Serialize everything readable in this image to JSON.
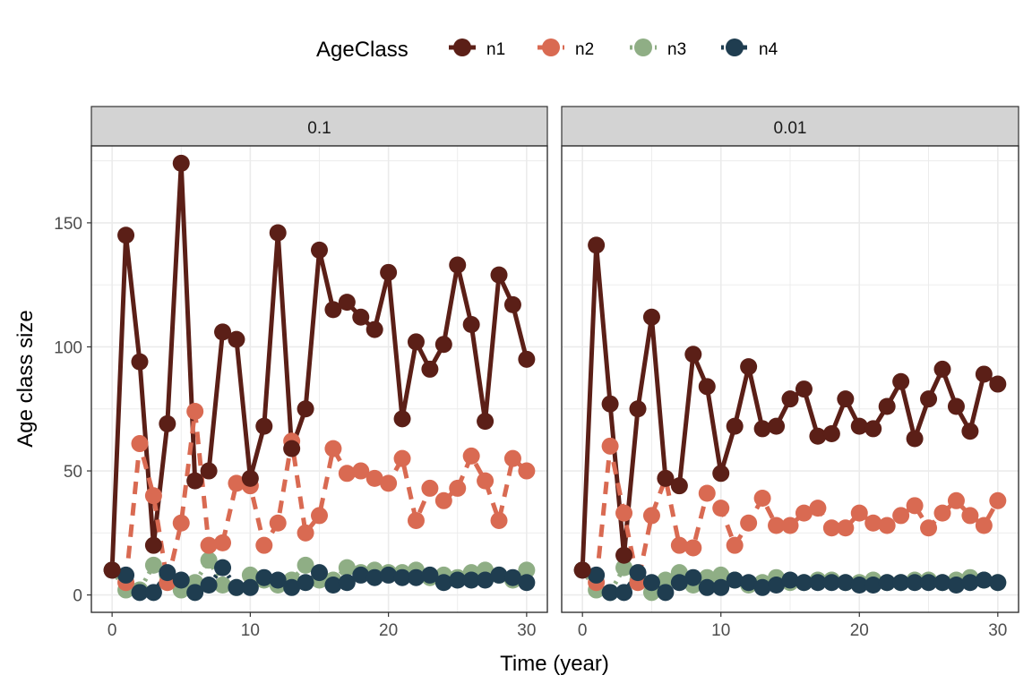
{
  "legend": {
    "title": "AgeClass",
    "items": [
      "n1",
      "n2",
      "n3",
      "n4"
    ]
  },
  "colors": {
    "n1": "#5b1f17",
    "n2": "#d96a52",
    "n3": "#8fae85",
    "n4": "#1f3d50",
    "panel_strip": "#d3d3d3",
    "grid": "#ebebeb",
    "axis_text": "#4d4d4d"
  },
  "axes": {
    "xlabel": "Time (year)",
    "ylabel": "Age class size"
  },
  "chart_data": [
    {
      "type": "line",
      "panel": "0.1",
      "x": [
        0,
        1,
        2,
        3,
        4,
        5,
        6,
        7,
        8,
        9,
        10,
        11,
        12,
        13,
        14,
        15,
        16,
        17,
        18,
        19,
        20,
        21,
        22,
        23,
        24,
        25,
        26,
        27,
        28,
        29,
        30
      ],
      "xlim": [
        -1.5,
        31.5
      ],
      "ylim": [
        -7,
        181
      ],
      "xticks": [
        0,
        10,
        20,
        30
      ],
      "yticks": [
        0,
        50,
        100,
        150
      ],
      "legend": "top",
      "grid": true,
      "series": [
        {
          "name": "n1",
          "line": "solid",
          "values": [
            10,
            145,
            94,
            20,
            69,
            174,
            46,
            50,
            106,
            103,
            47,
            68,
            146,
            59,
            75,
            139,
            115,
            118,
            112,
            107,
            130,
            71,
            102,
            91,
            101,
            133,
            109,
            70,
            129,
            117,
            95
          ]
        },
        {
          "name": "n2",
          "line": "dashed",
          "values": [
            10,
            5,
            61,
            40,
            5,
            29,
            74,
            20,
            21,
            45,
            44,
            20,
            29,
            62,
            25,
            32,
            59,
            49,
            50,
            47,
            45,
            55,
            30,
            43,
            38,
            43,
            56,
            46,
            30,
            55,
            50
          ]
        },
        {
          "name": "n3",
          "line": "dotted",
          "values": [
            10,
            2,
            2,
            12,
            8,
            2,
            5,
            14,
            4,
            3,
            8,
            6,
            4,
            6,
            12,
            6,
            6,
            11,
            9,
            10,
            9,
            9,
            10,
            7,
            8,
            7,
            9,
            10,
            8,
            6,
            10
          ]
        },
        {
          "name": "n4",
          "line": "dotdash",
          "values": [
            10,
            8,
            1,
            1,
            9,
            6,
            1,
            4,
            11,
            3,
            3,
            7,
            6,
            3,
            5,
            9,
            4,
            5,
            8,
            7,
            8,
            7,
            7,
            8,
            5,
            6,
            6,
            6,
            8,
            7,
            5
          ]
        }
      ]
    },
    {
      "type": "line",
      "panel": "0.01",
      "x": [
        0,
        1,
        2,
        3,
        4,
        5,
        6,
        7,
        8,
        9,
        10,
        11,
        12,
        13,
        14,
        15,
        16,
        17,
        18,
        19,
        20,
        21,
        22,
        23,
        24,
        25,
        26,
        27,
        28,
        29,
        30
      ],
      "xlim": [
        -1.5,
        31.5
      ],
      "ylim": [
        -7,
        181
      ],
      "xticks": [
        0,
        10,
        20,
        30
      ],
      "yticks": [
        0,
        50,
        100,
        150
      ],
      "legend": "top",
      "grid": true,
      "series": [
        {
          "name": "n1",
          "line": "solid",
          "values": [
            10,
            141,
            77,
            16,
            75,
            112,
            47,
            44,
            97,
            84,
            49,
            68,
            92,
            67,
            68,
            79,
            83,
            64,
            65,
            79,
            68,
            67,
            76,
            86,
            63,
            79,
            91,
            76,
            66,
            89,
            85
          ]
        },
        {
          "name": "n2",
          "line": "dashed",
          "values": [
            10,
            5,
            60,
            33,
            5,
            32,
            47,
            20,
            19,
            41,
            35,
            20,
            29,
            39,
            28,
            28,
            33,
            35,
            27,
            27,
            33,
            29,
            28,
            32,
            36,
            27,
            33,
            38,
            32,
            28,
            38
          ]
        },
        {
          "name": "n3",
          "line": "dotted",
          "values": [
            10,
            2,
            1,
            11,
            6,
            1,
            6,
            9,
            4,
            7,
            8,
            6,
            4,
            5,
            7,
            5,
            5,
            6,
            6,
            5,
            5,
            6,
            5,
            5,
            6,
            6,
            5,
            6,
            7,
            6,
            5
          ]
        },
        {
          "name": "n4",
          "line": "dotdash",
          "values": [
            10,
            8,
            1,
            1,
            9,
            5,
            1,
            5,
            7,
            3,
            3,
            6,
            5,
            3,
            4,
            6,
            5,
            5,
            5,
            5,
            4,
            4,
            5,
            5,
            5,
            5,
            5,
            4,
            5,
            6,
            5
          ]
        }
      ]
    }
  ]
}
